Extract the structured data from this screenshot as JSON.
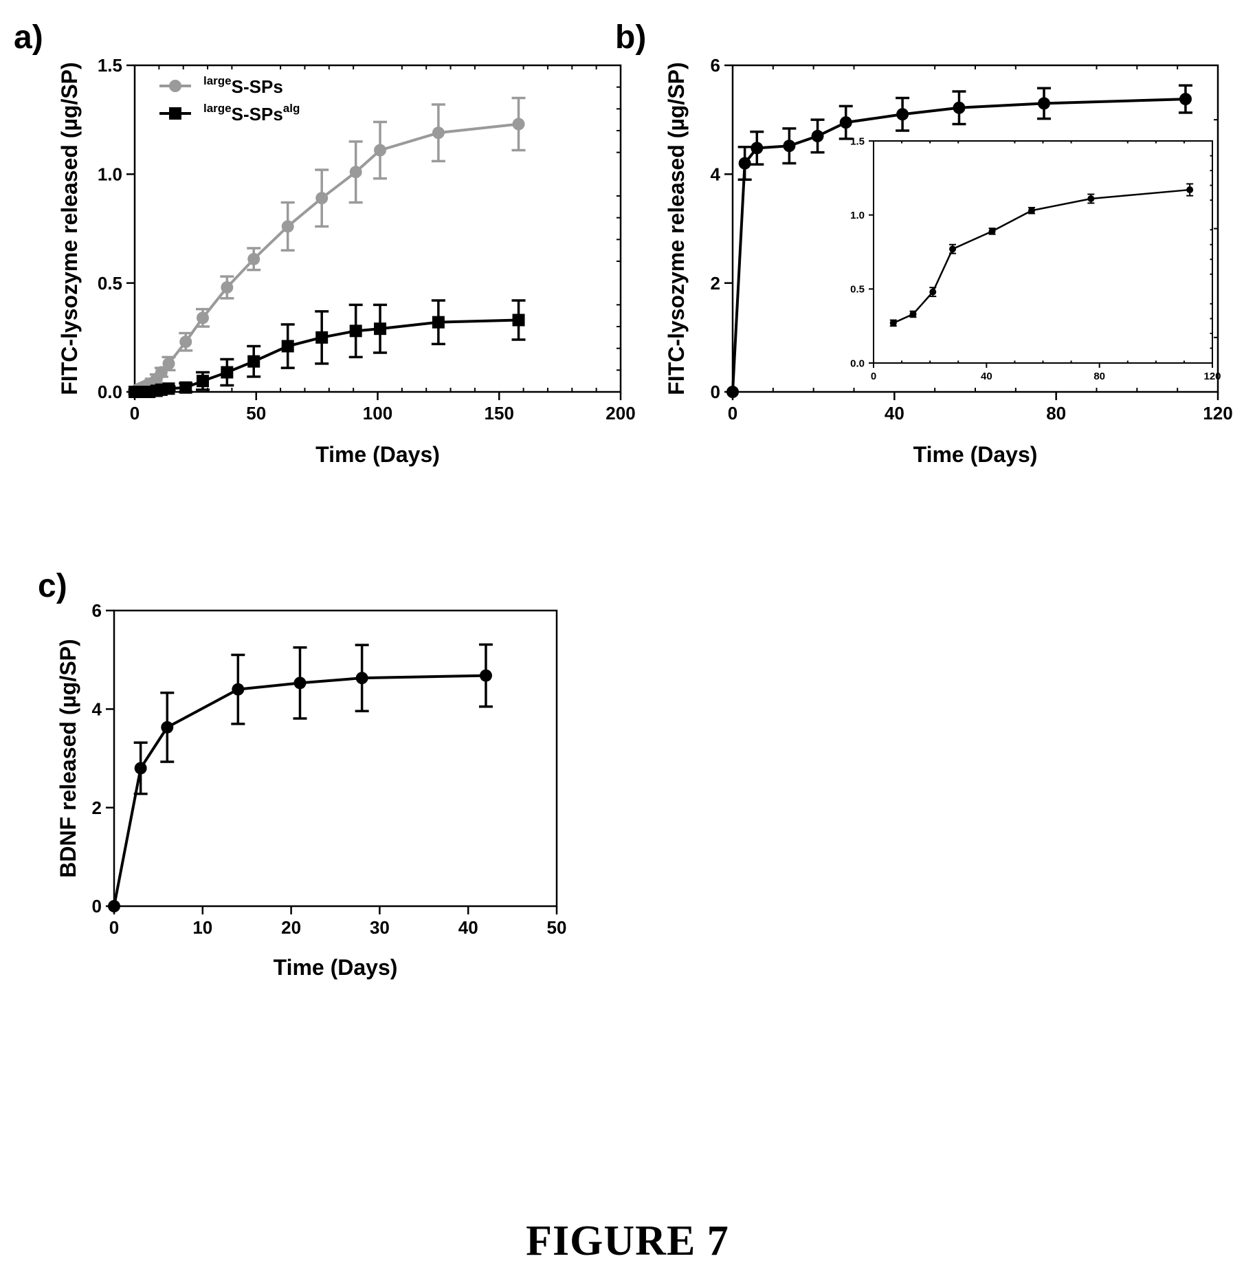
{
  "figure": {
    "caption": "FIGURE 7"
  },
  "colors": {
    "series_gray": "#9a9a9a",
    "series_black": "#000000",
    "axis": "#000000",
    "background": "#ffffff"
  },
  "chart_data": [
    {
      "panel": "a)",
      "type": "line",
      "title": "",
      "xlabel": "Time (Days)",
      "ylabel": "FITC-lysozyme released (µg/SP)",
      "xlim": [
        0,
        200
      ],
      "ylim": [
        0,
        1.5
      ],
      "xticks": [
        0,
        50,
        100,
        150,
        200
      ],
      "xtick_labels": [
        "0",
        "50",
        "100",
        "150",
        "200"
      ],
      "yticks": [
        0,
        0.5,
        1.0,
        1.5
      ],
      "ytick_labels": [
        "0.0",
        "0.5",
        "1.0",
        "1.5"
      ],
      "grid": false,
      "legend_position": "top-left",
      "series": [
        {
          "name_sup": "large",
          "name_main": "S-SPs",
          "name_sub": "",
          "marker": "circle",
          "color": "#9a9a9a",
          "x": [
            0,
            1,
            2,
            3,
            4,
            5,
            7,
            9,
            11,
            14,
            21,
            28,
            38,
            49,
            63,
            77,
            91,
            101,
            125,
            158
          ],
          "y": [
            0.0,
            0.01,
            0.015,
            0.02,
            0.025,
            0.03,
            0.04,
            0.06,
            0.09,
            0.13,
            0.23,
            0.34,
            0.48,
            0.61,
            0.76,
            0.89,
            1.01,
            1.11,
            1.19,
            1.23
          ],
          "err": [
            0.01,
            0.01,
            0.01,
            0.01,
            0.01,
            0.01,
            0.02,
            0.02,
            0.02,
            0.03,
            0.04,
            0.04,
            0.05,
            0.05,
            0.11,
            0.13,
            0.14,
            0.13,
            0.13,
            0.12
          ]
        },
        {
          "name_sup": "large",
          "name_main": "S-SPs",
          "name_sub": "alg",
          "marker": "square",
          "color": "#000000",
          "x": [
            0,
            3,
            6,
            9,
            11,
            14,
            21,
            28,
            38,
            49,
            63,
            77,
            91,
            101,
            125,
            158
          ],
          "y": [
            0.0,
            0.0,
            0.0,
            0.005,
            0.01,
            0.015,
            0.02,
            0.05,
            0.09,
            0.14,
            0.21,
            0.25,
            0.28,
            0.29,
            0.32,
            0.33
          ],
          "err": [
            0.0,
            0.0,
            0.0,
            0.01,
            0.01,
            0.01,
            0.02,
            0.04,
            0.06,
            0.07,
            0.1,
            0.12,
            0.12,
            0.11,
            0.1,
            0.09
          ]
        }
      ]
    },
    {
      "panel": "b)",
      "type": "line",
      "title": "",
      "xlabel": "Time (Days)",
      "ylabel": "FITC-lysozyme released (µg/SP)",
      "xlim": [
        0,
        120
      ],
      "ylim": [
        0,
        6
      ],
      "xticks": [
        0,
        40,
        80,
        120
      ],
      "xtick_labels": [
        "0",
        "40",
        "80",
        "120"
      ],
      "yticks": [
        0,
        2,
        4,
        6
      ],
      "ytick_labels": [
        "0",
        "2",
        "4",
        "6"
      ],
      "grid": false,
      "series": [
        {
          "name": "",
          "marker": "circle",
          "color": "#000000",
          "x": [
            0,
            3,
            6,
            14,
            21,
            28,
            42,
            56,
            77,
            112
          ],
          "y": [
            0,
            4.2,
            4.48,
            4.52,
            4.7,
            4.95,
            5.1,
            5.22,
            5.3,
            5.38
          ],
          "err": [
            0,
            0.3,
            0.3,
            0.32,
            0.3,
            0.3,
            0.3,
            0.3,
            0.28,
            0.25
          ]
        }
      ],
      "inset": {
        "xlim": [
          0,
          120
        ],
        "ylim": [
          0,
          1.5
        ],
        "xticks": [
          0,
          40,
          80,
          120
        ],
        "xtick_labels": [
          "0",
          "40",
          "80",
          "120"
        ],
        "yticks": [
          0,
          0.5,
          1.0,
          1.5
        ],
        "ytick_labels": [
          "0.0",
          "0.5",
          "1.0",
          "1.5"
        ],
        "series": [
          {
            "name": "",
            "marker": "circle",
            "color": "#000000",
            "x": [
              7,
              14,
              21,
              28,
              42,
              56,
              77,
              112
            ],
            "y": [
              0.27,
              0.33,
              0.48,
              0.77,
              0.89,
              1.03,
              1.11,
              1.17
            ],
            "err": [
              0.02,
              0.02,
              0.03,
              0.03,
              0.02,
              0.02,
              0.03,
              0.04
            ]
          }
        ]
      }
    },
    {
      "panel": "c)",
      "type": "line",
      "title": "",
      "xlabel": "Time (Days)",
      "ylabel": "BDNF released (µg/SP)",
      "xlim": [
        0,
        50
      ],
      "ylim": [
        0,
        6
      ],
      "xticks": [
        0,
        10,
        20,
        30,
        40,
        50
      ],
      "xtick_labels": [
        "0",
        "10",
        "20",
        "30",
        "40",
        "50"
      ],
      "yticks": [
        0,
        2,
        4,
        6
      ],
      "ytick_labels": [
        "0",
        "2",
        "4",
        "6"
      ],
      "grid": false,
      "series": [
        {
          "name": "",
          "marker": "circle",
          "color": "#000000",
          "x": [
            0,
            3,
            6,
            14,
            21,
            28,
            42
          ],
          "y": [
            0,
            2.8,
            3.63,
            4.4,
            4.53,
            4.63,
            4.68
          ],
          "err": [
            0,
            0.52,
            0.7,
            0.7,
            0.72,
            0.67,
            0.63
          ]
        }
      ]
    }
  ]
}
